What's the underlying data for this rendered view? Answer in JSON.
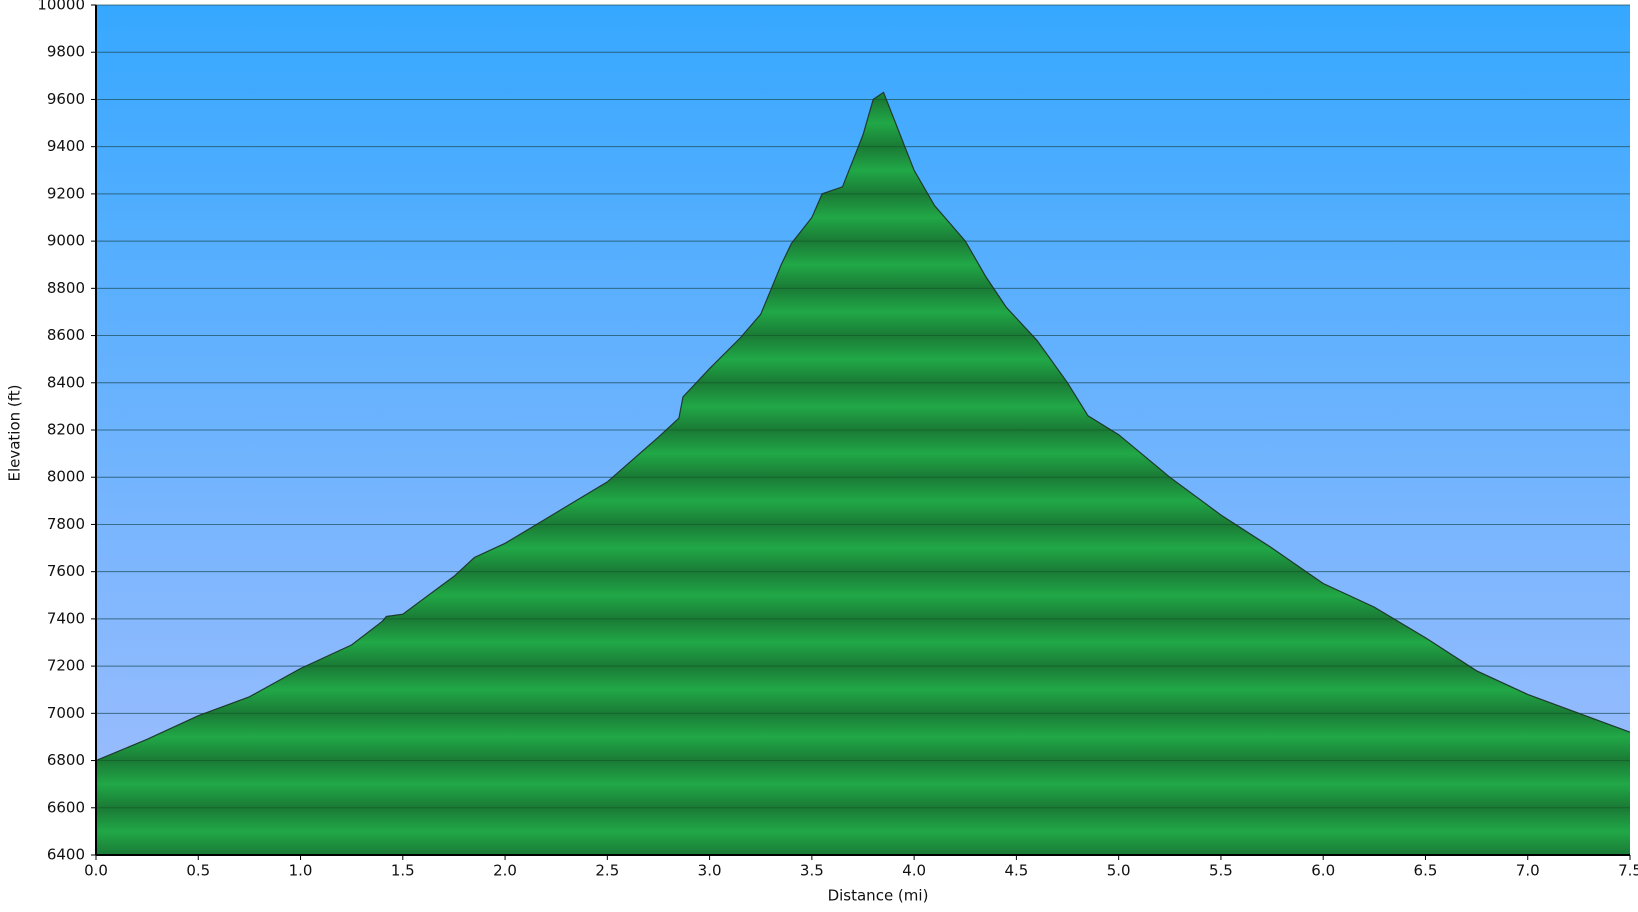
{
  "chart_data": {
    "type": "area",
    "x_label": "Distance   (mi)",
    "y_label": "Elevation (ft)",
    "x": [
      0.0,
      0.25,
      0.5,
      0.75,
      1.0,
      1.25,
      1.4,
      1.42,
      1.5,
      1.75,
      1.85,
      2.0,
      2.25,
      2.5,
      2.75,
      2.85,
      2.87,
      3.0,
      3.15,
      3.25,
      3.35,
      3.4,
      3.5,
      3.55,
      3.65,
      3.75,
      3.8,
      3.85,
      3.9,
      4.0,
      4.1,
      4.25,
      4.35,
      4.45,
      4.6,
      4.75,
      4.85,
      5.0,
      5.25,
      5.5,
      5.75,
      6.0,
      6.25,
      6.5,
      6.75,
      7.0,
      7.25,
      7.5
    ],
    "values": [
      6800,
      6890,
      6990,
      7070,
      7190,
      7290,
      7390,
      7410,
      7420,
      7580,
      7660,
      7720,
      7850,
      7980,
      8170,
      8250,
      8340,
      8460,
      8590,
      8690,
      8900,
      8990,
      9100,
      9200,
      9230,
      9450,
      9600,
      9630,
      9520,
      9300,
      9150,
      9000,
      8850,
      8720,
      8580,
      8400,
      8260,
      8180,
      8000,
      7840,
      7700,
      7550,
      7450,
      7320,
      7180,
      7080,
      7000,
      6920
    ],
    "color": "#21a847",
    "line_color": "#1e3b2c",
    "xlim": [
      0,
      7.5
    ],
    "ylim": [
      6400,
      10000
    ],
    "xticks": [
      {
        "value": 0,
        "label": "0.0"
      },
      0.5,
      {
        "value": 1,
        "label": "1.0"
      },
      1.5,
      {
        "value": 2,
        "label": "2.0"
      },
      2.5,
      {
        "value": 3,
        "label": "3.0"
      },
      3.5,
      {
        "value": 4,
        "label": "4.0"
      },
      4.5,
      {
        "value": 5,
        "label": "5.0"
      },
      5.5,
      {
        "value": 6,
        "label": "6.0"
      },
      6.5,
      {
        "value": 7,
        "label": "7.0"
      },
      7.5
    ],
    "yticks": [
      6400,
      6600,
      6800,
      7000,
      7200,
      7400,
      7600,
      7800,
      8000,
      8200,
      8400,
      8600,
      8800,
      9000,
      9200,
      9400,
      9600,
      9800,
      10000
    ],
    "grid": true
  }
}
